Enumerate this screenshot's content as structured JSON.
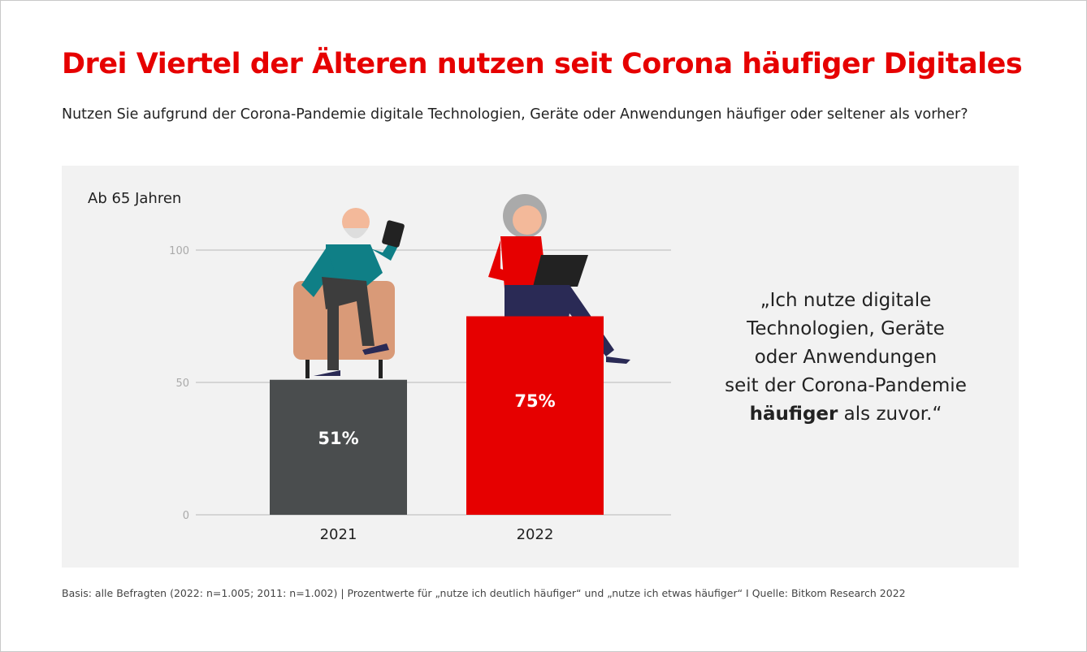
{
  "title": "Drei Viertel der Älteren nutzen seit Corona häufiger Digitales",
  "subtitle": "Nutzen Sie aufgrund der Corona-Pandemie digitale Technologien, Geräte oder Anwendungen häufiger oder seltener als vorher?",
  "group_label": "Ab 65 Jahren",
  "quote": {
    "line1": "„Ich nutze digitale",
    "line2": "Technologien, Geräte",
    "line3": "oder Anwendungen",
    "line4": "seit der Corona-Pandemie",
    "bold": "häufiger",
    "rest": " als zuvor.“"
  },
  "footnote": "Basis: alle Befragten (2022: n=1.005; 2011: n=1.002) | Prozentwerte für „nutze ich deutlich häufiger“ und „nutze ich etwas häufiger“ I Quelle: Bitkom Research 2022",
  "chart_data": {
    "type": "bar",
    "categories": [
      "2021",
      "2022"
    ],
    "values": [
      51,
      75
    ],
    "data_labels": [
      "51%",
      "75%"
    ],
    "ylim": [
      0,
      100
    ],
    "yticks": [
      0,
      50,
      100
    ],
    "grid": true,
    "colors": [
      "#4a4d4e",
      "#e60000"
    ]
  }
}
